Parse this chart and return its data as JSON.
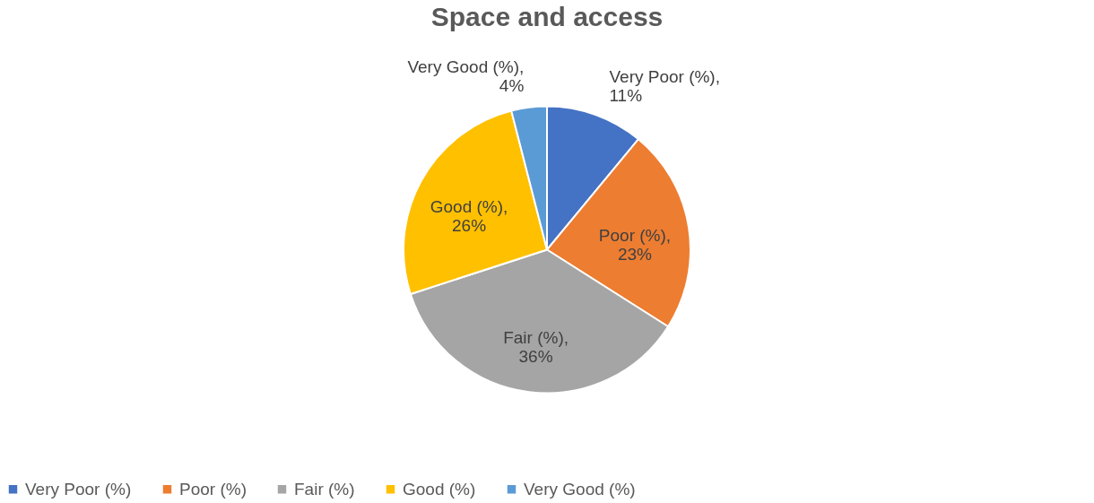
{
  "chart_data": {
    "type": "pie",
    "title": "Space and access",
    "categories": [
      "Very Poor (%)",
      "Poor (%)",
      "Fair (%)",
      "Good (%)",
      "Very Good (%)"
    ],
    "values": [
      11,
      23,
      36,
      26,
      4
    ],
    "colors": [
      "#4472c4",
      "#ed7d31",
      "#a5a5a5",
      "#ffc000",
      "#5b9bd5"
    ],
    "value_labels": [
      "Very Poor (%), 11%",
      "Poor (%), 23%",
      "Fair (%), 36%",
      "Good (%), 26%",
      "Very Good (%), 4%"
    ],
    "legend": "bottom"
  }
}
